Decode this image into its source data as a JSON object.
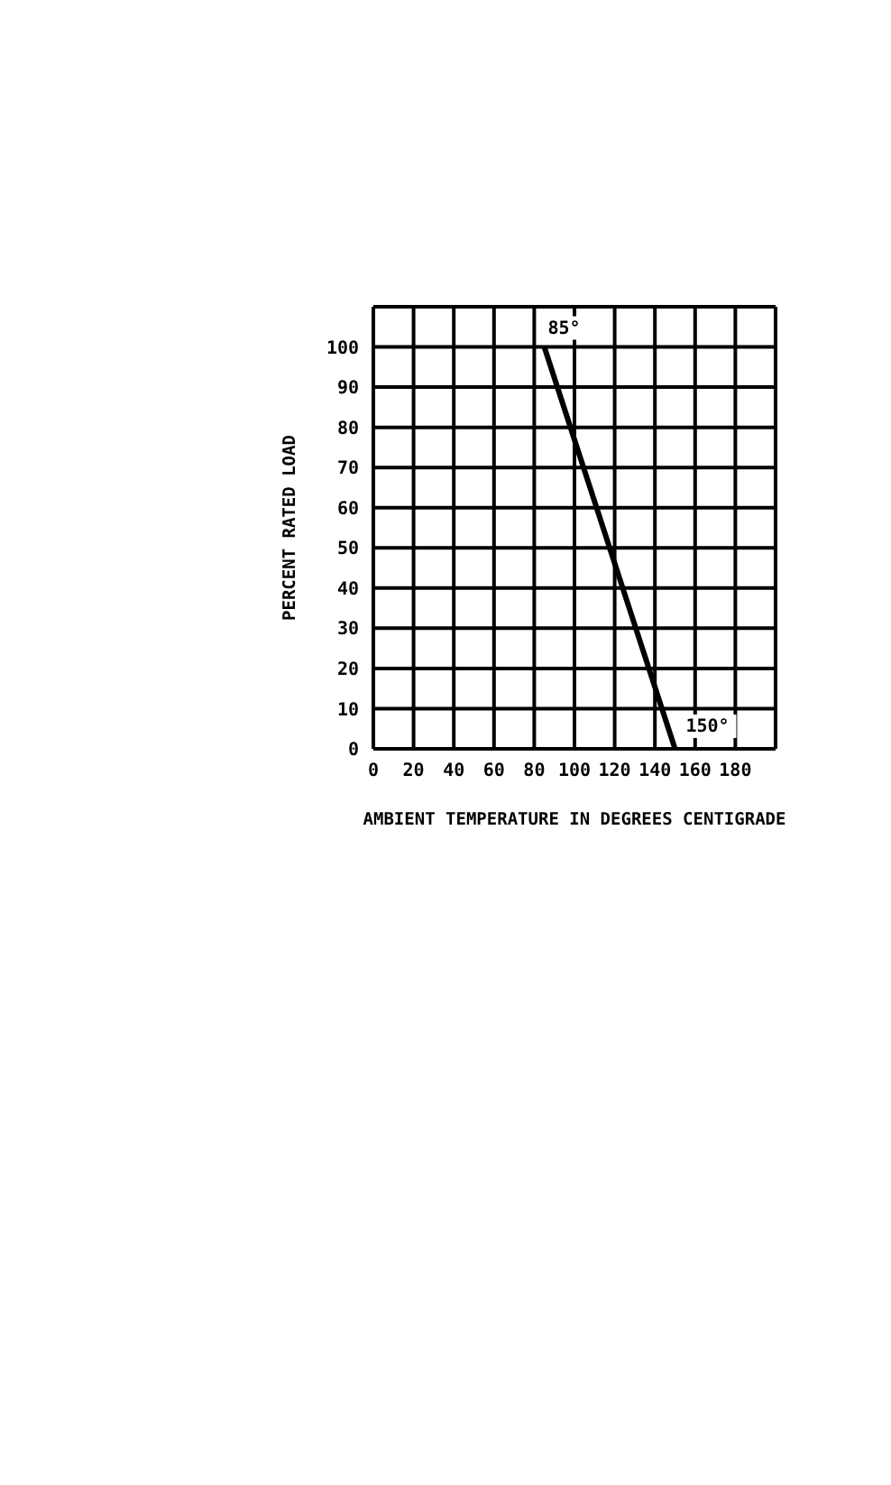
{
  "chart_data": {
    "type": "line",
    "xlabel": "AMBIENT TEMPERATURE IN DEGREES CENTIGRADE",
    "ylabel": "PERCENT RATED LOAD",
    "x": [
      85,
      150
    ],
    "series": [
      {
        "color": "#000000",
        "values": [
          100,
          0
        ]
      }
    ],
    "xlim": [
      0,
      200
    ],
    "xticks": [
      0,
      20,
      40,
      60,
      80,
      100,
      120,
      140,
      160,
      180,
      {
        "value": 200,
        "label": null
      }
    ],
    "ylim": [
      0,
      110
    ],
    "yticks": [
      0,
      10,
      20,
      30,
      40,
      50,
      60,
      70,
      80,
      90,
      100,
      {
        "value": 110,
        "label": null
      }
    ],
    "annotations": [
      {
        "text": "85°",
        "x": 85,
        "y": 100
      },
      {
        "text": "150°",
        "x": 150,
        "y": 0
      }
    ],
    "grid": true,
    "legend": false,
    "marker": "none",
    "line_style": "solid"
  }
}
